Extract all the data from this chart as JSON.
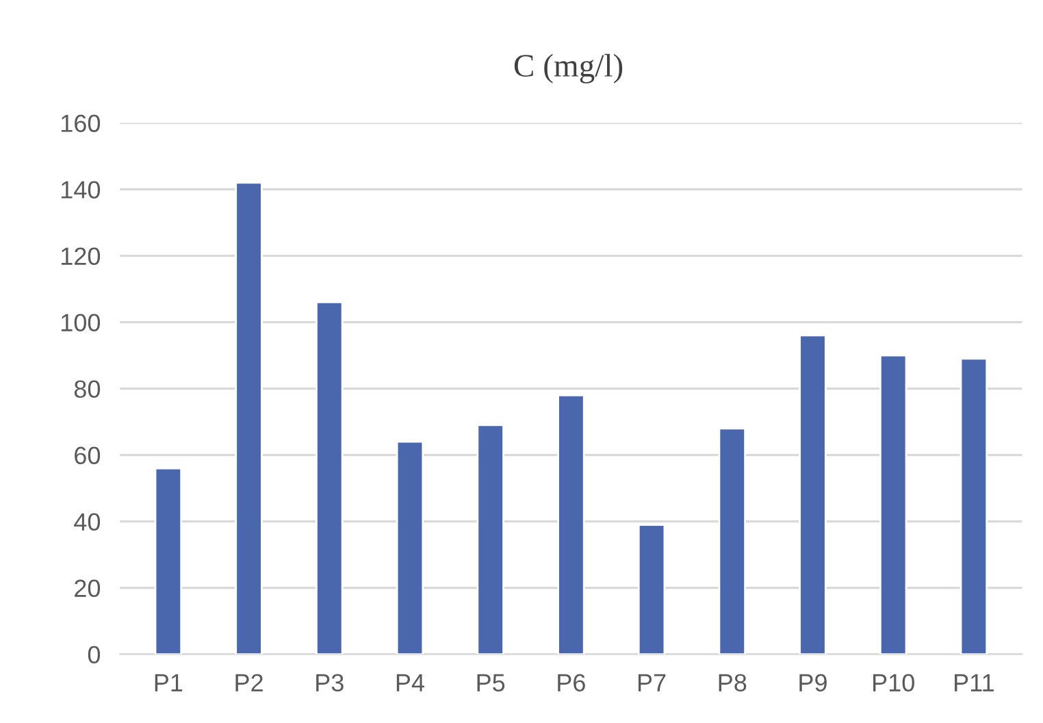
{
  "chart_data": {
    "type": "bar",
    "title": "C (mg/l)",
    "categories": [
      "P1",
      "P2",
      "P3",
      "P4",
      "P5",
      "P6",
      "P7",
      "P8",
      "P9",
      "P10",
      "P11"
    ],
    "values": [
      56,
      142,
      106,
      64,
      69,
      78,
      39,
      68,
      96,
      90,
      89
    ],
    "color": "#4a66ac",
    "ylim": [
      0,
      160
    ],
    "yticks": [
      0,
      20,
      40,
      60,
      80,
      100,
      120,
      140,
      160
    ],
    "grid": "y",
    "legend": false
  }
}
